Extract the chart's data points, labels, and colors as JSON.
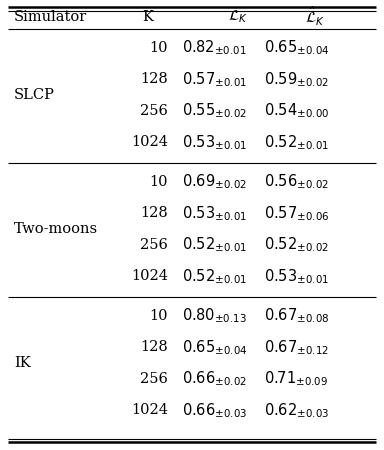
{
  "col_headers": [
    "Simulator",
    "K",
    "$\\mathcal{L}_K$",
    "$\\hat{\\mathcal{L}}_K$"
  ],
  "groups": [
    {
      "name": "SLCP",
      "rows": [
        {
          "K": "10",
          "L": "0.82",
          "L_pm": "0.01",
          "Lhat": "0.65",
          "Lhat_pm": "0.04"
        },
        {
          "K": "128",
          "L": "0.57",
          "L_pm": "0.01",
          "Lhat": "0.59",
          "Lhat_pm": "0.02"
        },
        {
          "K": "256",
          "L": "0.55",
          "L_pm": "0.02",
          "Lhat": "0.54",
          "Lhat_pm": "0.00"
        },
        {
          "K": "1024",
          "L": "0.53",
          "L_pm": "0.01",
          "Lhat": "0.52",
          "Lhat_pm": "0.01"
        }
      ]
    },
    {
      "name": "Two-moons",
      "rows": [
        {
          "K": "10",
          "L": "0.69",
          "L_pm": "0.02",
          "Lhat": "0.56",
          "Lhat_pm": "0.02"
        },
        {
          "K": "128",
          "L": "0.53",
          "L_pm": "0.01",
          "Lhat": "0.57",
          "Lhat_pm": "0.06"
        },
        {
          "K": "256",
          "L": "0.52",
          "L_pm": "0.01",
          "Lhat": "0.52",
          "Lhat_pm": "0.02"
        },
        {
          "K": "1024",
          "L": "0.52",
          "L_pm": "0.01",
          "Lhat": "0.53",
          "Lhat_pm": "0.01"
        }
      ]
    },
    {
      "name": "IK",
      "rows": [
        {
          "K": "10",
          "L": "0.80",
          "L_pm": "0.13",
          "Lhat": "0.67",
          "Lhat_pm": "0.08"
        },
        {
          "K": "128",
          "L": "0.65",
          "L_pm": "0.04",
          "Lhat": "0.67",
          "Lhat_pm": "0.12"
        },
        {
          "K": "256",
          "L": "0.66",
          "L_pm": "0.02",
          "Lhat": "0.71",
          "Lhat_pm": "0.09"
        },
        {
          "K": "1024",
          "L": "0.66",
          "L_pm": "0.03",
          "Lhat": "0.62",
          "Lhat_pm": "0.03"
        }
      ]
    }
  ],
  "figsize": [
    3.84,
    4.5
  ],
  "dpi": 100,
  "bg_color": "#ffffff",
  "lw_thick": 1.8,
  "lw_thin": 0.8,
  "fs_main": 10.5,
  "fs_small": 6.5
}
